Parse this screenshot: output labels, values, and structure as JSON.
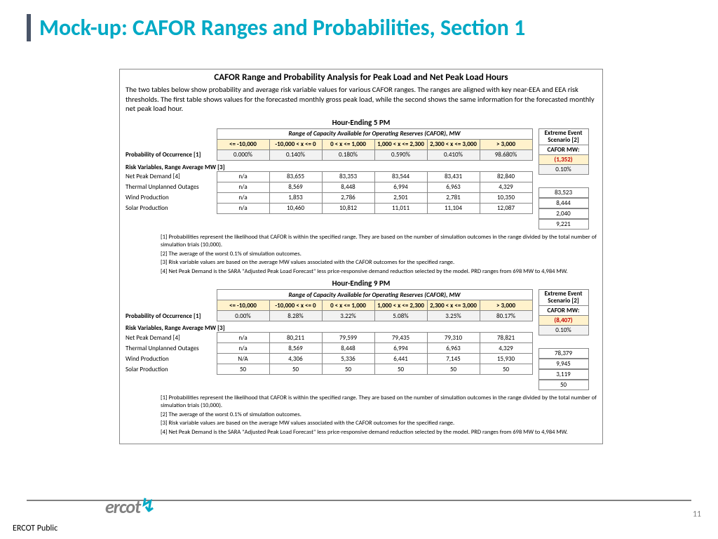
{
  "slide": {
    "title": "Mock-up: CAFOR Ranges and Probabilities, Section 1",
    "page_number": "11",
    "classification": "ERCOT Public",
    "logo_text": "ercot"
  },
  "doc": {
    "title": "CAFOR Range and Probability Analysis for Peak Load and Net Peak Load Hours",
    "intro": "The two tables below show probability and average risk variable values for various CAFOR ranges. The ranges are aligned with key near-EEA and EEA risk thresholds. The first table shows values for the forecasted monthly gross peak load, while the second shows the same information for the forecasted monthly net peak load hour."
  },
  "sections": [
    {
      "header": "Hour-Ending 5 PM",
      "range_header": "Range of Capacity Available for Operating Reserves (CAFOR), MW",
      "columns": [
        "<= -10,000",
        "-10,000 < x <= 0",
        "0 < x <= 1,000",
        "1,000 < x <= 2,300",
        "2,300 < x <= 3,000",
        "> 3,000"
      ],
      "prob_label": "Probability of Occurrence [1]",
      "prob_values": [
        "0.000%",
        "0.140%",
        "0.180%",
        "0.590%",
        "0.410%",
        "98.680%"
      ],
      "extreme": {
        "header": "Extreme Event Scenario [2]",
        "label": "CAFOR MW:",
        "value": "(1,352)",
        "pct": "0.10%"
      },
      "risk_header": "Risk Variables, Range Average MW [3]",
      "risk_rows": [
        {
          "label": "Net Peak Demand [4]",
          "vals": [
            "n/a",
            "83,655",
            "83,353",
            "83,544",
            "83,431",
            "82,840"
          ],
          "extreme": "83,523"
        },
        {
          "label": "Thermal Unplanned Outages",
          "vals": [
            "n/a",
            "8,569",
            "8,448",
            "6,994",
            "6,963",
            "4,329"
          ],
          "extreme": "8,444"
        },
        {
          "label": "Wind Production",
          "vals": [
            "n/a",
            "1,853",
            "2,786",
            "2,501",
            "2,781",
            "10,350"
          ],
          "extreme": "2,040"
        },
        {
          "label": "Solar Production",
          "vals": [
            "n/a",
            "10,460",
            "10,812",
            "11,011",
            "11,104",
            "12,087"
          ],
          "extreme": "9,221"
        }
      ],
      "footnotes": [
        "[1] Probabilities represent the likelihood that CAFOR is within the specified range. They are based on the number of simulation outcomes in the range divided by the total number of simulation trials (10,000).",
        "[2] The average of the worst 0.1% of simulation outcomes.",
        "[3] Risk variable values are based on the average MW values associated with the CAFOR outcomes for the specified range.",
        "[4] Net Peak Demand is the SARA \"Adjusted Peak Load Forecast\" less price-responsive demand reduction selected by the model. PRD ranges from 698 MW to 4,984 MW."
      ]
    },
    {
      "header": "Hour-Ending 9 PM",
      "range_header": "Range of Capacity Available for Operating Reserves (CAFOR), MW",
      "columns": [
        "<= -10,000",
        "-10,000 < x <= 0",
        "0 < x <= 1,000",
        "1,000 < x <= 2,300",
        "2,300 < x <= 3,000",
        "> 3,000"
      ],
      "prob_label": "Probability of Occurrence [1]",
      "prob_values": [
        "0.00%",
        "8.28%",
        "3.22%",
        "5.08%",
        "3.25%",
        "80.17%"
      ],
      "extreme": {
        "header": "Extreme Event Scenario [2]",
        "label": "CAFOR MW:",
        "value": "(8,407)",
        "pct": "0.10%"
      },
      "risk_header": "Risk Variables, Range Average MW [3]",
      "risk_rows": [
        {
          "label": "Net Peak Demand [4]",
          "vals": [
            "n/a",
            "80,211",
            "79,599",
            "79,435",
            "79,310",
            "78,821"
          ],
          "extreme": "78,379"
        },
        {
          "label": "Thermal Unplanned Outages",
          "vals": [
            "n/a",
            "8,569",
            "8,448",
            "6,994",
            "6,963",
            "4,329"
          ],
          "extreme": "9,945"
        },
        {
          "label": "Wind Production",
          "vals": [
            "N/A",
            "4,306",
            "5,336",
            "6,441",
            "7,145",
            "15,930"
          ],
          "extreme": "3,119"
        },
        {
          "label": "Solar Production",
          "vals": [
            "50",
            "50",
            "50",
            "50",
            "50",
            "50"
          ],
          "extreme": "50"
        }
      ],
      "footnotes": [
        "[1] Probabilities represent the likelihood that CAFOR is within the specified range. They are based on the number of simulation outcomes in the range divided by the total number of simulation trials (10,000).",
        "[2] The average of the worst 0.1% of simulation outcomes.",
        "[3] Risk variable values are based on the average MW values associated with the CAFOR outcomes for the specified range.",
        "[4] Net Peak Demand is the SARA \"Adjusted Peak Load Forecast\" less price-responsive demand reduction selected by the model. PRD ranges from 698 MW to 4,984 MW."
      ]
    }
  ],
  "colors": {
    "accent": "#00a9c5",
    "header_bg": "#fff2cc",
    "grey_bg": "#f2f2f2",
    "red": "#c00000",
    "border": "#888888"
  }
}
